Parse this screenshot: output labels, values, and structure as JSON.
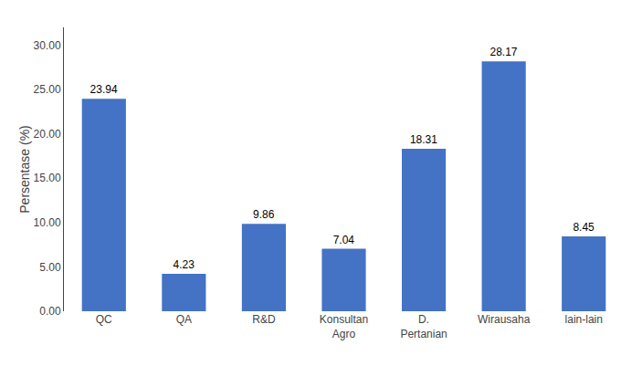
{
  "chart_data": {
    "type": "bar",
    "categories": [
      "QC",
      "QA",
      "R&D",
      "Konsultan\nAgro",
      "D.\nPertanian",
      "Wirausaha",
      "lain-lain"
    ],
    "values": [
      23.94,
      4.23,
      9.86,
      7.04,
      18.31,
      28.17,
      8.45
    ],
    "color": "#4472C4",
    "ylabel": "Persentase (%)",
    "ylim": [
      0,
      32
    ],
    "yticks": [
      {
        "value": 0,
        "label": "0.00"
      },
      {
        "value": 5,
        "label": "5.00"
      },
      {
        "value": 10,
        "label": "10.00"
      },
      {
        "value": 15,
        "label": "15.00"
      },
      {
        "value": 20,
        "label": "20.00"
      },
      {
        "value": 25,
        "label": "25.00"
      },
      {
        "value": 30,
        "label": "30.00"
      }
    ],
    "grid": false,
    "data_labels": true
  }
}
